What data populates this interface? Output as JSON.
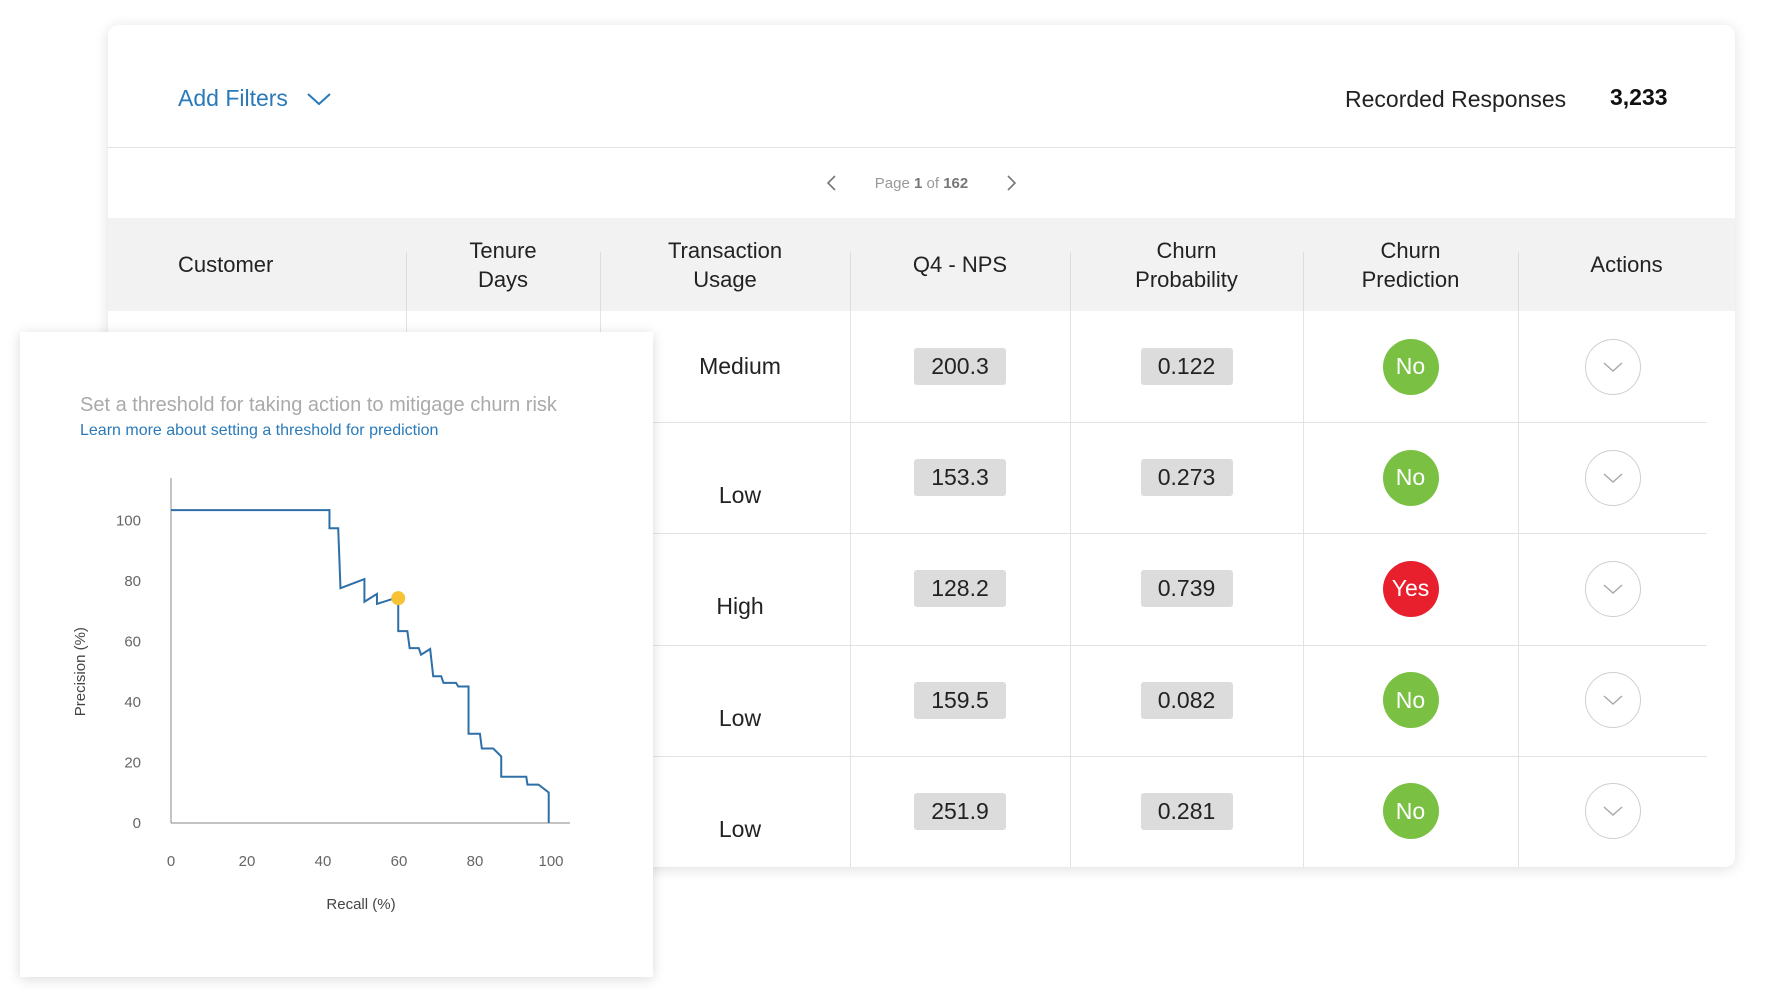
{
  "header": {
    "add_filters": "Add Filters",
    "recorded_label": "Recorded Responses",
    "recorded_count": "3,233"
  },
  "pagination": {
    "page_label": "Page",
    "current": "1",
    "of": "of",
    "total": "162"
  },
  "table": {
    "columns": [
      "Customer",
      "Tenure Days",
      "Transaction Usage",
      "Q4 - NPS",
      "Churn Probability",
      "Churn Prediction",
      "Actions"
    ],
    "rows": [
      {
        "usage": "Medium",
        "nps": "200.3",
        "probability": "0.122",
        "prediction": "No"
      },
      {
        "usage": "Low",
        "nps": "153.3",
        "probability": "0.273",
        "prediction": "No"
      },
      {
        "usage": "High",
        "nps": "128.2",
        "probability": "0.739",
        "prediction": "Yes"
      },
      {
        "usage": "Low",
        "nps": "159.5",
        "probability": "0.082",
        "prediction": "No"
      },
      {
        "usage": "Low",
        "nps": "251.9",
        "probability": "0.281",
        "prediction": "No"
      }
    ]
  },
  "panel": {
    "subtitle": "Set a threshold for taking action to mitigage churn risk",
    "link": "Learn more about setting a threshold for prediction"
  },
  "chart_data": {
    "type": "line",
    "x_label": "Recall (%)",
    "y_label": "Precision (%)",
    "xlim": [
      0,
      105
    ],
    "ylim": [
      0,
      114
    ],
    "xticks": [
      0,
      20,
      40,
      60,
      80,
      100
    ],
    "yticks": [
      0,
      20,
      40,
      60,
      80,
      100
    ],
    "series": [
      {
        "color": "#2f6fa8",
        "x": [
          0,
          41.7,
          41.7,
          44.0,
          44.6,
          50.9,
          50.9,
          54.2,
          54.2,
          58.0,
          59.8,
          59.8,
          62.2,
          62.8,
          65.2,
          65.8,
          68.2,
          69.0,
          71.1,
          71.7,
          75.0,
          75.6,
          78.3,
          78.3,
          81.3,
          81.8,
          84.8,
          86.9,
          86.9,
          93.5,
          93.8,
          96.7,
          99.4,
          99.4
        ],
        "values": [
          103.4,
          103.4,
          97.4,
          97.4,
          77.6,
          80.6,
          73.1,
          75.7,
          72.4,
          73.9,
          74.3,
          63.4,
          63.4,
          57.8,
          57.8,
          55.6,
          57.5,
          48.5,
          48.5,
          46.3,
          46.3,
          45.1,
          45.1,
          29.5,
          29.5,
          24.6,
          24.6,
          22.0,
          15.3,
          15.3,
          12.7,
          12.7,
          10.1,
          0
        ]
      }
    ],
    "threshold": {
      "x": 59.8,
      "y": 74.3,
      "color": "#f7c335"
    }
  }
}
